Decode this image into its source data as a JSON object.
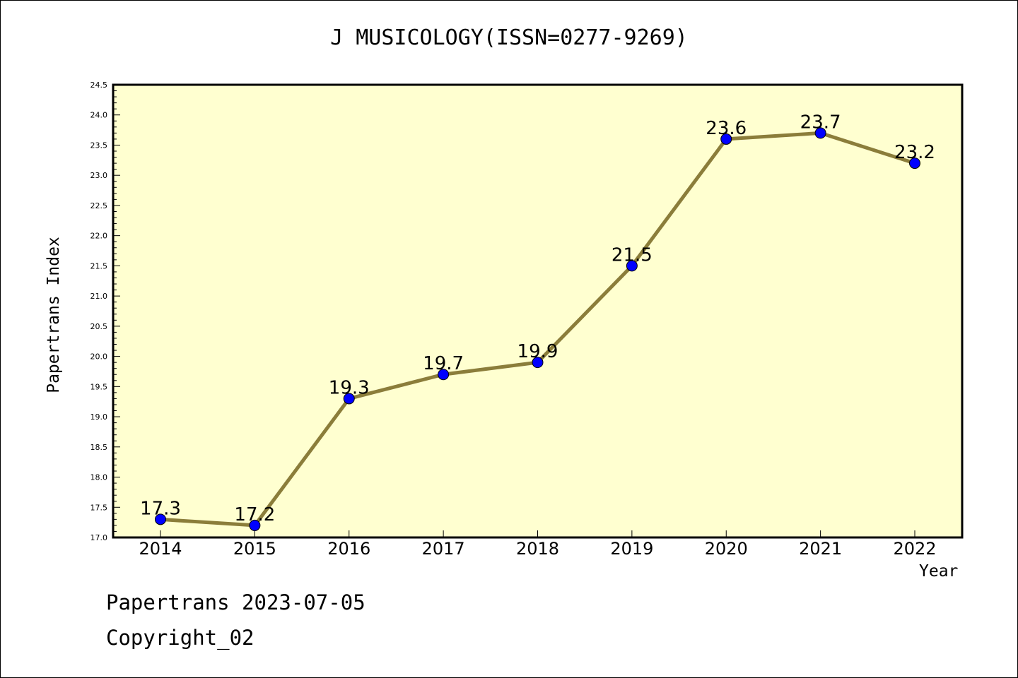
{
  "chart_data": {
    "type": "line",
    "title": "J MUSICOLOGY(ISSN=0277-9269)",
    "xlabel": "Year",
    "ylabel": "Papertrans Index",
    "categories": [
      "2014",
      "2015",
      "2016",
      "2017",
      "2018",
      "2019",
      "2020",
      "2021",
      "2022"
    ],
    "series": [
      {
        "values": [
          17.3,
          17.2,
          19.3,
          19.7,
          19.9,
          21.5,
          23.6,
          23.7,
          23.2
        ]
      }
    ],
    "data_labels": [
      "17.3",
      "17.2",
      "19.3",
      "19.7",
      "19.9",
      "21.5",
      "23.6",
      "23.7",
      "23.2"
    ],
    "ylim": [
      17.0,
      24.5
    ],
    "y_ticks": [
      "17.0",
      "17.5",
      "18.0",
      "18.5",
      "19.0",
      "19.5",
      "20.0",
      "20.5",
      "21.0",
      "21.5",
      "22.0",
      "22.5",
      "23.0",
      "23.5",
      "24.0",
      "24.5"
    ],
    "grid": false,
    "legend": "none",
    "colors": {
      "plot_bg": "#ffffd0",
      "line": "#8b7d3a",
      "marker": "#0000ff"
    }
  },
  "footer": {
    "line1": "Papertrans 2023-07-05",
    "line2": "Copyright_02"
  }
}
